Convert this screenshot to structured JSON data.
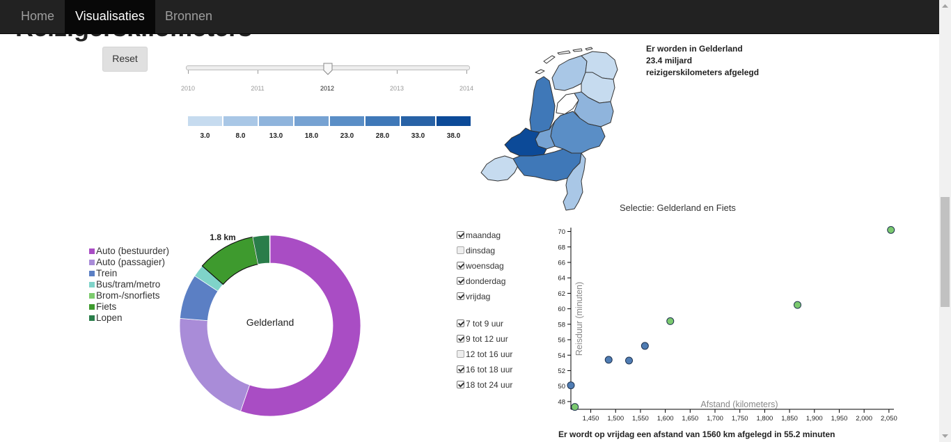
{
  "nav": {
    "items": [
      {
        "label": "Home",
        "active": false
      },
      {
        "label": "Visualisaties",
        "active": true
      },
      {
        "label": "Bronnen",
        "active": false
      }
    ]
  },
  "page": {
    "title": "Reizigerskilometers",
    "reset_label": "Reset"
  },
  "slider": {
    "years": [
      "2010",
      "2011",
      "2012",
      "2013",
      "2014"
    ],
    "selected": "2012"
  },
  "scale": {
    "labels": [
      "3.0",
      "8.0",
      "13.0",
      "18.0",
      "23.0",
      "28.0",
      "33.0",
      "38.0"
    ],
    "colors": [
      "#c6dbef",
      "#a9c7e6",
      "#8fb4dc",
      "#76a2d2",
      "#5a8ec6",
      "#3f78b8",
      "#2862a6",
      "#0c4a98"
    ]
  },
  "map_info": {
    "line1": "Er worden in Gelderland",
    "line2": "23.4 miljard",
    "line3": "reizigerskilometers afgelegd"
  },
  "donut": {
    "center_label": "Gelderland",
    "highlight_label": "1.8 km",
    "legend": [
      {
        "label": "Auto (bestuurder)",
        "color": "#a94dc4"
      },
      {
        "label": "Auto (passagier)",
        "color": "#a98cd8"
      },
      {
        "label": "Trein",
        "color": "#5b7fc4"
      },
      {
        "label": "Bus/tram/metro",
        "color": "#7fd3c9"
      },
      {
        "label": "Brom-/snorfiets",
        "color": "#7ccb6e"
      },
      {
        "label": "Fiets",
        "color": "#3e9a2e"
      },
      {
        "label": "Lopen",
        "color": "#2a7d4a"
      }
    ],
    "fractions": [
      0.553,
      0.21,
      0.08,
      0.022,
      0.0,
      0.104,
      0.03
    ]
  },
  "filters": {
    "days": [
      {
        "label": "maandag",
        "checked": true
      },
      {
        "label": "dinsdag",
        "checked": false
      },
      {
        "label": "woensdag",
        "checked": true
      },
      {
        "label": "donderdag",
        "checked": true
      },
      {
        "label": "vrijdag",
        "checked": true
      }
    ],
    "times": [
      {
        "label": "7 tot 9 uur",
        "checked": true
      },
      {
        "label": "9 tot 12 uur",
        "checked": true
      },
      {
        "label": "12 tot 16 uur",
        "checked": false
      },
      {
        "label": "16 tot 18 uur",
        "checked": true
      },
      {
        "label": "18 tot 24 uur",
        "checked": true
      }
    ]
  },
  "scatter": {
    "title": "Selectie: Gelderland en Fiets",
    "xlabel": "Afstand (kilometers)",
    "ylabel": "Reisduur (minuten)",
    "bottom_text": "Er wordt op vrijdag een afstand van 1560 km afgelegd in 55.2 minuten"
  },
  "chart_data": {
    "type": "scatter",
    "title": "",
    "xlabel": "Afstand (kilometers)",
    "ylabel": "Reisduur (minuten)",
    "xlim": [
      1410,
      2060
    ],
    "ylim": [
      47,
      70.5
    ],
    "xticks": [
      1450,
      1500,
      1550,
      1600,
      1650,
      1700,
      1750,
      1800,
      1850,
      1900,
      1950,
      2000,
      2050
    ],
    "xtick_labels": [
      "1,450",
      "1,500",
      "1,550",
      "1,600",
      "1,650",
      "1,700",
      "1,750",
      "1,800",
      "1,850",
      "1,900",
      "1,950",
      "2,000",
      "2,050"
    ],
    "yticks": [
      48,
      50,
      52,
      54,
      56,
      58,
      60,
      62,
      64,
      66,
      68,
      70
    ],
    "points": [
      {
        "x": 1410,
        "y": 50.1,
        "color": "#4f7cb3"
      },
      {
        "x": 1418,
        "y": 47.3,
        "color": "#7bc96f"
      },
      {
        "x": 1486,
        "y": 53.4,
        "color": "#4f7cb3"
      },
      {
        "x": 1527,
        "y": 53.3,
        "color": "#4f7cb3"
      },
      {
        "x": 1559,
        "y": 55.2,
        "color": "#4f7cb3"
      },
      {
        "x": 1610,
        "y": 58.4,
        "color": "#7bc96f"
      },
      {
        "x": 1866,
        "y": 60.5,
        "color": "#7bc96f"
      },
      {
        "x": 2054,
        "y": 70.2,
        "color": "#7bc96f"
      }
    ]
  },
  "map": {
    "provinces": [
      {
        "name": "Groningen",
        "color": "#c6dbef"
      },
      {
        "name": "Friesland",
        "color": "#a9c7e6"
      },
      {
        "name": "Drenthe",
        "color": "#c6dbef"
      },
      {
        "name": "Noord-Holland",
        "color": "#3f78b8"
      },
      {
        "name": "Flevoland",
        "color": "#ffffff"
      },
      {
        "name": "Overijssel",
        "color": "#8fb4dc"
      },
      {
        "name": "Gelderland",
        "color": "#5a8ec6"
      },
      {
        "name": "Utrecht",
        "color": "#76a2d2"
      },
      {
        "name": "Zuid-Holland",
        "color": "#0c4a98"
      },
      {
        "name": "Zeeland",
        "color": "#c6dbef"
      },
      {
        "name": "Noord-Brabant",
        "color": "#3f78b8"
      },
      {
        "name": "Limburg",
        "color": "#a9c7e6"
      }
    ]
  }
}
